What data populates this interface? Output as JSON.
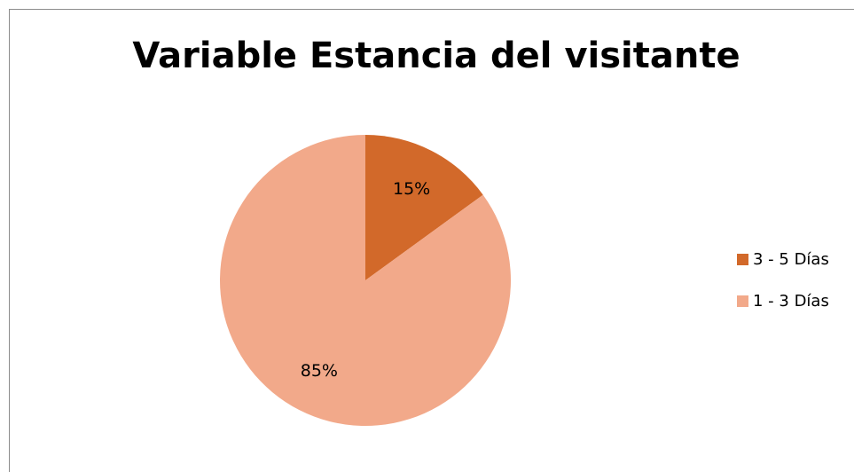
{
  "chart_data": {
    "type": "pie",
    "title": "Variable Estancia del visitante",
    "categories": [
      "3 - 5 Días",
      "1 - 3 Días"
    ],
    "values": [
      15,
      85
    ],
    "value_labels": [
      "15%",
      "85%"
    ],
    "colors": [
      "#d2692a",
      "#f2a98a"
    ],
    "legend": "right"
  }
}
